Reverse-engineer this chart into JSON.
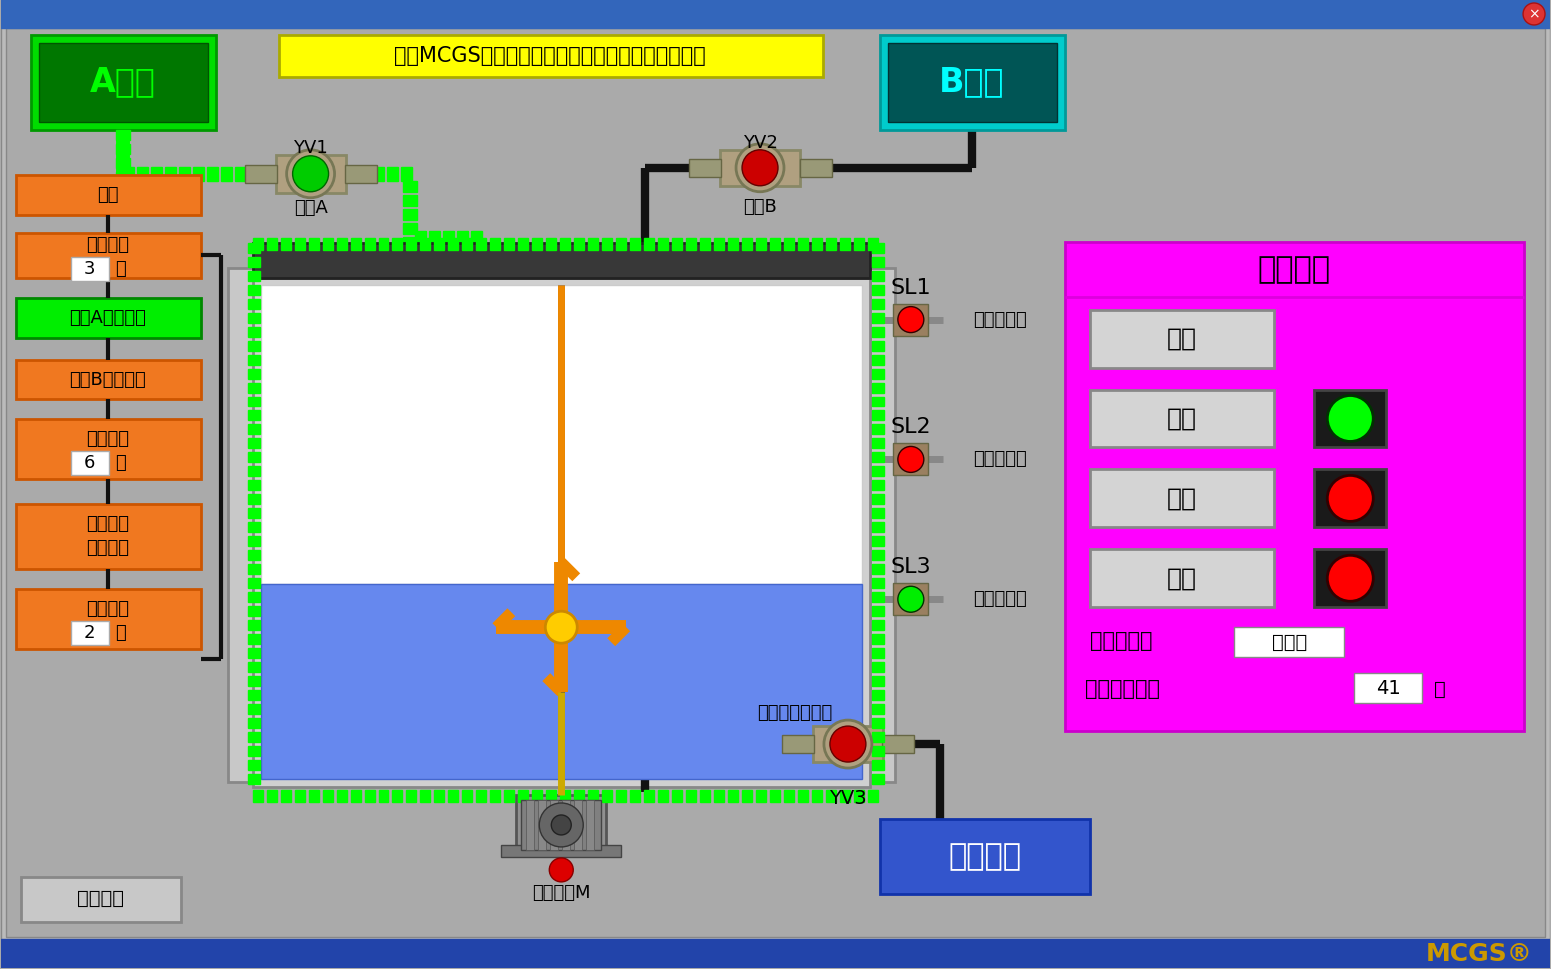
{
  "title": "基于MCGS嵌入式的两种液体混合搅拌控制模拟仿真",
  "bg_color": "#aaaaaa",
  "title_bg": "#ffff00",
  "title_color": "#000000",
  "A_label": "A液体",
  "B_label": "B液体",
  "mix_label": "混合液体",
  "panel_title": "控制面板",
  "panel_bg": "#ff00ff",
  "step_labels": [
    "开始",
    "初始排空",
    "液体A阀门开启",
    "液体B阀门开启",
    "电机搅拌",
    "混合液体\n阀门开启",
    "液体排空"
  ],
  "step_timer_vals": [
    "",
    "3",
    "",
    "",
    "6",
    "",
    "2"
  ],
  "step_colors": [
    "#f07820",
    "#f07820",
    "#00ee00",
    "#f07820",
    "#f07820",
    "#f07820",
    "#f07820"
  ],
  "control_buttons": [
    "复位",
    "启动",
    "停止",
    "急停"
  ],
  "btn_indicator_colors": [
    null,
    "#00ff00",
    "#ff0000",
    "#ff0000"
  ],
  "sensor_labels": [
    "SL1",
    "SL2",
    "SL3"
  ],
  "sensor_colors": [
    "#ff0000",
    "#ff0000",
    "#00ee00"
  ],
  "valve_a_label": "阀门A",
  "valve_b_label": "阀门B",
  "motor_label": "搅拌电机M",
  "mix_valve_label": "混合液体电磁阀",
  "status_label": "系统状态：",
  "status_value": "运行中",
  "runtime_label": "系统运行时间",
  "runtime_value": "41",
  "runtime_unit": "秒",
  "return_btn": "返回登录",
  "mcgs_watermark": "MCGS",
  "pipe_green": "#00ff00",
  "pipe_black": "#111111",
  "tank_top_color": "#333333",
  "tank_body_color": "#cccccc",
  "tank_inner_color": "#ffffff",
  "tank_liquid_color": "#6688ee",
  "stirrer_color": "#ee8800",
  "stirrer_center": "#ffcc00",
  "stirrer_shaft": "#ccaa00",
  "window_title_bar": "#3366bb",
  "bottom_bar": "#2244aa"
}
